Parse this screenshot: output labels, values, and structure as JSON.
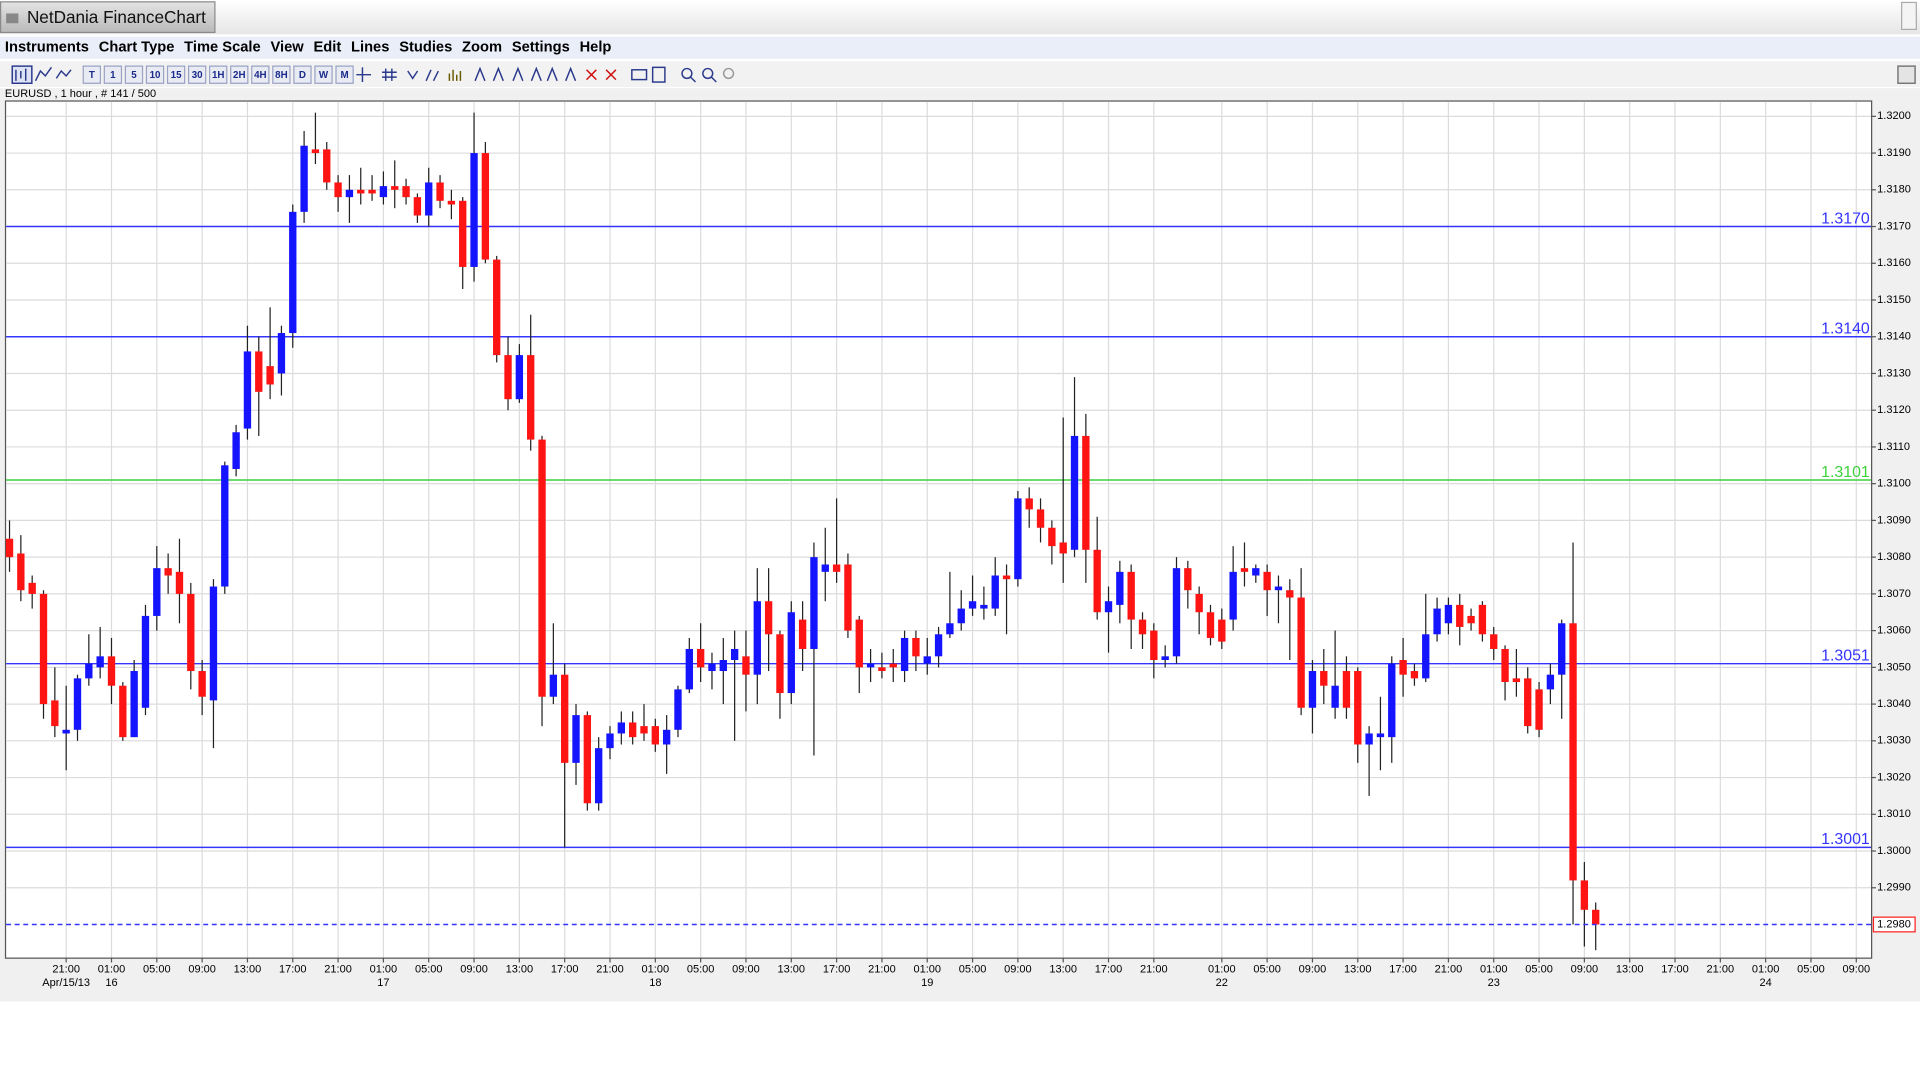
{
  "window": {
    "title": "NetDania FinanceChart"
  },
  "menu": [
    "Instruments",
    "Chart Type",
    "Time Scale",
    "View",
    "Edit",
    "Lines",
    "Studies",
    "Zoom",
    "Settings",
    "Help"
  ],
  "toolbar": [
    "T",
    "1",
    "5",
    "10",
    "15",
    "30",
    "1H",
    "2H",
    "4H",
    "8H",
    "D",
    "W",
    "M"
  ],
  "chart_data": {
    "type": "candlestick",
    "title": "EURUSD , 1 hour , # 141 / 500",
    "up_color": "#1414ff",
    "down_color": "#ff1414",
    "wick_color": "#222222",
    "grid": true,
    "open": [
      1.3085,
      1.3081,
      1.3073,
      1.307,
      1.3041,
      1.3032,
      1.3033,
      1.3047,
      1.305,
      1.3053,
      1.3045,
      1.3031,
      1.3039,
      1.3064,
      1.3077,
      1.3076,
      1.307,
      1.3049,
      1.3041,
      1.3072,
      1.3104,
      1.3115,
      1.3136,
      1.3132,
      1.313,
      1.3141,
      1.3174,
      1.3191,
      1.3191,
      1.3182,
      1.3178,
      1.318,
      1.318,
      1.3178,
      1.3181,
      1.3181,
      1.3178,
      1.3173,
      1.3182,
      1.3177,
      1.3177,
      1.3159,
      1.319,
      1.3161,
      1.3135,
      1.3123,
      1.3135,
      1.3112,
      1.3042,
      1.3048,
      1.3024,
      1.3037,
      1.3013,
      1.3028,
      1.3032,
      1.3035,
      1.3034,
      1.3034,
      1.3029,
      1.3033,
      1.3044,
      1.3055,
      1.3049,
      1.3049,
      1.3052,
      1.3053,
      1.3048,
      1.3068,
      1.3059,
      1.3043,
      1.3063,
      1.3055,
      1.3076,
      1.3078,
      1.3078,
      1.3063,
      1.305,
      1.305,
      1.3051,
      1.3049,
      1.3058,
      1.3051,
      1.3053,
      1.3059,
      1.3062,
      1.3066,
      1.3066,
      1.3066,
      1.3075,
      1.3074,
      1.3096,
      1.3093,
      1.3088,
      1.3084,
      1.3082,
      1.3113,
      1.3082,
      1.3065,
      1.3067,
      1.3076,
      1.3063,
      1.306,
      1.3052,
      1.3053,
      1.3077,
      1.307,
      1.3065,
      1.3063,
      1.3063,
      1.3077,
      1.3075,
      1.3076,
      1.3071,
      1.3071,
      1.3069,
      1.3039,
      1.3049,
      1.3039,
      1.3049,
      1.3049,
      1.3029,
      1.3031,
      1.3031,
      1.3052,
      1.3049,
      1.3047,
      1.3059,
      1.3062,
      1.3067,
      1.3064,
      1.3067,
      1.3059,
      1.3055,
      1.3047,
      1.3047,
      1.3044,
      1.3044,
      1.3048,
      1.3062,
      1.2992,
      1.2984
    ],
    "high": [
      1.309,
      1.3086,
      1.3075,
      1.3071,
      1.305,
      1.3045,
      1.3048,
      1.3059,
      1.3061,
      1.3058,
      1.3046,
      1.3052,
      1.3067,
      1.3083,
      1.3081,
      1.3085,
      1.3073,
      1.3052,
      1.3074,
      1.3106,
      1.3116,
      1.3143,
      1.314,
      1.3148,
      1.3143,
      1.3176,
      1.3196,
      1.3201,
      1.3193,
      1.3184,
      1.3184,
      1.3186,
      1.3184,
      1.3185,
      1.3188,
      1.3183,
      1.3179,
      1.3186,
      1.3184,
      1.318,
      1.3178,
      1.3201,
      1.3193,
      1.3162,
      1.314,
      1.3138,
      1.3146,
      1.3113,
      1.3062,
      1.3051,
      1.304,
      1.3038,
      1.3031,
      1.3034,
      1.3038,
      1.3038,
      1.304,
      1.3036,
      1.3037,
      1.3045,
      1.3058,
      1.3062,
      1.3054,
      1.3058,
      1.306,
      1.306,
      1.3077,
      1.3077,
      1.306,
      1.3068,
      1.3068,
      1.3084,
      1.3088,
      1.3096,
      1.3081,
      1.3064,
      1.3055,
      1.3054,
      1.3055,
      1.306,
      1.306,
      1.3058,
      1.3061,
      1.3076,
      1.3071,
      1.3075,
      1.3072,
      1.308,
      1.3078,
      1.3098,
      1.3099,
      1.3096,
      1.309,
      1.3118,
      1.3129,
      1.3119,
      1.3091,
      1.3072,
      1.3079,
      1.3078,
      1.3065,
      1.3062,
      1.3056,
      1.308,
      1.3079,
      1.3072,
      1.3067,
      1.3066,
      1.3083,
      1.3084,
      1.3078,
      1.3078,
      1.3075,
      1.3074,
      1.3077,
      1.3052,
      1.3055,
      1.306,
      1.3053,
      1.305,
      1.3034,
      1.3042,
      1.3053,
      1.3058,
      1.3051,
      1.307,
      1.3069,
      1.3069,
      1.307,
      1.3066,
      1.3068,
      1.3061,
      1.3056,
      1.3055,
      1.305,
      1.3046,
      1.3051,
      1.3063,
      1.3084,
      1.2997,
      1.2986
    ],
    "low": [
      1.3076,
      1.3068,
      1.3066,
      1.3036,
      1.3031,
      1.3022,
      1.303,
      1.3045,
      1.3047,
      1.304,
      1.303,
      1.3031,
      1.3037,
      1.306,
      1.307,
      1.3062,
      1.3044,
      1.3037,
      1.3028,
      1.307,
      1.3102,
      1.3112,
      1.3113,
      1.3123,
      1.3124,
      1.3137,
      1.3171,
      1.3187,
      1.318,
      1.3174,
      1.3171,
      1.3176,
      1.3177,
      1.3176,
      1.3175,
      1.3176,
      1.3171,
      1.317,
      1.3175,
      1.3172,
      1.3153,
      1.3155,
      1.316,
      1.3133,
      1.312,
      1.3122,
      1.3109,
      1.3034,
      1.304,
      1.3001,
      1.3018,
      1.3011,
      1.3011,
      1.3025,
      1.3029,
      1.3029,
      1.303,
      1.3027,
      1.3021,
      1.3031,
      1.3043,
      1.3046,
      1.3044,
      1.304,
      1.303,
      1.3038,
      1.304,
      1.3049,
      1.3036,
      1.304,
      1.3049,
      1.3026,
      1.3068,
      1.3073,
      1.3058,
      1.3043,
      1.3046,
      1.3047,
      1.3046,
      1.3046,
      1.3049,
      1.3048,
      1.305,
      1.3058,
      1.306,
      1.3064,
      1.3063,
      1.3064,
      1.3059,
      1.3072,
      1.3088,
      1.3084,
      1.3078,
      1.3073,
      1.308,
      1.3073,
      1.3063,
      1.3054,
      1.3062,
      1.3055,
      1.3055,
      1.3047,
      1.305,
      1.3051,
      1.3066,
      1.3059,
      1.3056,
      1.3055,
      1.306,
      1.3072,
      1.3073,
      1.3064,
      1.3062,
      1.3052,
      1.3037,
      1.3032,
      1.304,
      1.3036,
      1.3036,
      1.3024,
      1.3015,
      1.3022,
      1.3024,
      1.3042,
      1.3045,
      1.3046,
      1.3057,
      1.3059,
      1.3056,
      1.306,
      1.3057,
      1.3052,
      1.3041,
      1.3042,
      1.3032,
      1.3031,
      1.304,
      1.3036,
      1.298,
      1.2974,
      1.2973
    ],
    "close": [
      1.308,
      1.3071,
      1.307,
      1.304,
      1.3034,
      1.3033,
      1.3047,
      1.3051,
      1.3053,
      1.3045,
      1.3031,
      1.3049,
      1.3064,
      1.3077,
      1.3075,
      1.307,
      1.3049,
      1.3042,
      1.3072,
      1.3105,
      1.3114,
      1.3136,
      1.3125,
      1.3127,
      1.3141,
      1.3174,
      1.3192,
      1.319,
      1.3182,
      1.3178,
      1.318,
      1.3179,
      1.3179,
      1.3181,
      1.318,
      1.3178,
      1.3173,
      1.3182,
      1.3177,
      1.3176,
      1.3159,
      1.319,
      1.3161,
      1.3135,
      1.3123,
      1.3135,
      1.3112,
      1.3042,
      1.3048,
      1.3024,
      1.3037,
      1.3013,
      1.3028,
      1.3032,
      1.3035,
      1.3031,
      1.3032,
      1.3029,
      1.3033,
      1.3044,
      1.3055,
      1.305,
      1.3051,
      1.3052,
      1.3055,
      1.3048,
      1.3068,
      1.3059,
      1.3043,
      1.3065,
      1.3055,
      1.308,
      1.3078,
      1.3076,
      1.306,
      1.305,
      1.3051,
      1.3049,
      1.305,
      1.3058,
      1.3053,
      1.3053,
      1.3059,
      1.3062,
      1.3066,
      1.3068,
      1.3067,
      1.3075,
      1.3074,
      1.3096,
      1.3093,
      1.3088,
      1.3083,
      1.3081,
      1.3113,
      1.3082,
      1.3065,
      1.3068,
      1.3076,
      1.3063,
      1.3059,
      1.3052,
      1.3053,
      1.3077,
      1.3071,
      1.3065,
      1.3058,
      1.3057,
      1.3076,
      1.3076,
      1.3077,
      1.3071,
      1.3072,
      1.3069,
      1.3039,
      1.3049,
      1.3045,
      1.3045,
      1.3039,
      1.3029,
      1.3032,
      1.3032,
      1.3051,
      1.3048,
      1.3047,
      1.3059,
      1.3066,
      1.3067,
      1.3061,
      1.3062,
      1.3059,
      1.3055,
      1.3046,
      1.3046,
      1.3034,
      1.3033,
      1.3048,
      1.3062,
      1.2992,
      1.2984,
      1.298
    ],
    "xlim": [
      -0.3,
      164.3
    ],
    "xticks": [
      {
        "value": 5,
        "label": "21:00"
      },
      {
        "value": 9,
        "label": "01:00"
      },
      {
        "value": 13,
        "label": "05:00"
      },
      {
        "value": 17,
        "label": "09:00"
      },
      {
        "value": 21,
        "label": "13:00"
      },
      {
        "value": 25,
        "label": "17:00"
      },
      {
        "value": 29,
        "label": "21:00"
      },
      {
        "value": 33,
        "label": "01:00"
      },
      {
        "value": 37,
        "label": "05:00"
      },
      {
        "value": 41,
        "label": "09:00"
      },
      {
        "value": 45,
        "label": "13:00"
      },
      {
        "value": 49,
        "label": "17:00"
      },
      {
        "value": 53,
        "label": "21:00"
      },
      {
        "value": 57,
        "label": "01:00"
      },
      {
        "value": 61,
        "label": "05:00"
      },
      {
        "value": 65,
        "label": "09:00"
      },
      {
        "value": 69,
        "label": "13:00"
      },
      {
        "value": 73,
        "label": "17:00"
      },
      {
        "value": 77,
        "label": "21:00"
      },
      {
        "value": 81,
        "label": "01:00"
      },
      {
        "value": 85,
        "label": "05:00"
      },
      {
        "value": 89,
        "label": "09:00"
      },
      {
        "value": 93,
        "label": "13:00"
      },
      {
        "value": 97,
        "label": "17:00"
      },
      {
        "value": 101,
        "label": "21:00"
      },
      {
        "value": 107,
        "label": "01:00"
      },
      {
        "value": 111,
        "label": "05:00"
      },
      {
        "value": 115,
        "label": "09:00"
      },
      {
        "value": 119,
        "label": "13:00"
      },
      {
        "value": 123,
        "label": "17:00"
      },
      {
        "value": 127,
        "label": "21:00"
      },
      {
        "value": 131,
        "label": "01:00"
      },
      {
        "value": 135,
        "label": "05:00"
      },
      {
        "value": 139,
        "label": "09:00"
      },
      {
        "value": 143,
        "label": "13:00"
      },
      {
        "value": 147,
        "label": "17:00"
      },
      {
        "value": 151,
        "label": "21:00"
      },
      {
        "value": 155,
        "label": "01:00"
      },
      {
        "value": 159,
        "label": "05:00"
      },
      {
        "value": 163,
        "label": "09:00"
      }
    ],
    "date_labels": [
      {
        "value": 5,
        "label": "Apr/15/13"
      },
      {
        "value": 9,
        "label": "16"
      },
      {
        "value": 33,
        "label": "17"
      },
      {
        "value": 57,
        "label": "18"
      },
      {
        "value": 81,
        "label": "19"
      },
      {
        "value": 107,
        "label": "22"
      },
      {
        "value": 131,
        "label": "23"
      },
      {
        "value": 155,
        "label": "24"
      }
    ],
    "ylim": [
      1.2971,
      1.3204
    ],
    "yticks": [
      {
        "value": 1.299,
        "label": "1.2990"
      },
      {
        "value": 1.3,
        "label": "1.3000"
      },
      {
        "value": 1.301,
        "label": "1.3010"
      },
      {
        "value": 1.302,
        "label": "1.3020"
      },
      {
        "value": 1.303,
        "label": "1.3030"
      },
      {
        "value": 1.304,
        "label": "1.3040"
      },
      {
        "value": 1.305,
        "label": "1.3050"
      },
      {
        "value": 1.306,
        "label": "1.3060"
      },
      {
        "value": 1.307,
        "label": "1.3070"
      },
      {
        "value": 1.308,
        "label": "1.3080"
      },
      {
        "value": 1.309,
        "label": "1.3090"
      },
      {
        "value": 1.31,
        "label": "1.3100"
      },
      {
        "value": 1.311,
        "label": "1.3110"
      },
      {
        "value": 1.312,
        "label": "1.3120"
      },
      {
        "value": 1.313,
        "label": "1.3130"
      },
      {
        "value": 1.314,
        "label": "1.3140"
      },
      {
        "value": 1.315,
        "label": "1.3150"
      },
      {
        "value": 1.316,
        "label": "1.3160"
      },
      {
        "value": 1.317,
        "label": "1.3170"
      },
      {
        "value": 1.318,
        "label": "1.3180"
      },
      {
        "value": 1.319,
        "label": "1.3190"
      },
      {
        "value": 1.32,
        "label": "1.3200"
      }
    ],
    "levels": [
      {
        "value": 1.317,
        "label": "1.3170",
        "color": "#3434ff"
      },
      {
        "value": 1.314,
        "label": "1.3140",
        "color": "#3434ff"
      },
      {
        "value": 1.3101,
        "label": "1.3101",
        "color": "#3cd23c"
      },
      {
        "value": 1.3051,
        "label": "1.3051",
        "color": "#3434ff"
      },
      {
        "value": 1.3001,
        "label": "1.3001",
        "color": "#3434ff"
      }
    ],
    "last_price": {
      "value": 1.298,
      "label": "1.2980",
      "color": "#3434ff"
    }
  }
}
